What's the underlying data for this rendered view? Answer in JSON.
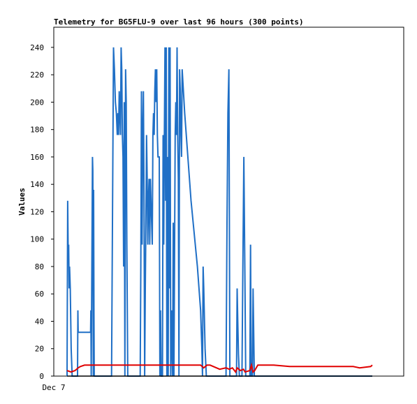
{
  "chart_data": {
    "type": "line",
    "title": "Telemetry for BG5FLU-9 over last 96 hours (300 points)",
    "xlabel": "",
    "ylabel": "Values",
    "ylim": [
      0,
      255
    ],
    "yticks": [
      0,
      20,
      40,
      60,
      80,
      100,
      120,
      140,
      160,
      180,
      200,
      220,
      240
    ],
    "x_tick_labels": [
      "Dec 7"
    ],
    "grid": false,
    "colors": {
      "blue": "#1f6fc6",
      "red": "#e00000",
      "black": "#000000"
    },
    "series": [
      {
        "color": "blue",
        "points": [
          [
            0.0,
            0
          ],
          [
            0.2,
            128
          ],
          [
            0.35,
            90
          ],
          [
            0.5,
            96
          ],
          [
            0.65,
            64
          ],
          [
            0.8,
            80
          ],
          [
            1.0,
            64
          ],
          [
            1.3,
            20
          ],
          [
            1.6,
            0
          ],
          [
            3.3,
            0
          ],
          [
            3.4,
            48
          ],
          [
            3.5,
            32
          ],
          [
            7.4,
            32
          ],
          [
            7.5,
            48
          ],
          [
            7.6,
            0
          ],
          [
            8.0,
            160
          ],
          [
            8.1,
            150
          ],
          [
            8.25,
            0
          ],
          [
            8.35,
            136
          ],
          [
            8.45,
            48
          ],
          [
            8.55,
            0
          ],
          [
            14.0,
            0
          ],
          [
            14.3,
            120
          ],
          [
            14.6,
            240
          ],
          [
            14.9,
            224
          ],
          [
            15.2,
            200
          ],
          [
            15.5,
            192
          ],
          [
            15.8,
            176
          ],
          [
            16.0,
            192
          ],
          [
            16.2,
            176
          ],
          [
            16.4,
            208
          ],
          [
            16.6,
            192
          ],
          [
            16.8,
            176
          ],
          [
            17.0,
            240
          ],
          [
            17.2,
            224
          ],
          [
            17.4,
            176
          ],
          [
            17.6,
            160
          ],
          [
            17.8,
            80
          ],
          [
            18.0,
            200
          ],
          [
            18.2,
            0
          ],
          [
            18.4,
            224
          ],
          [
            18.6,
            200
          ],
          [
            18.8,
            96
          ],
          [
            19.1,
            0
          ],
          [
            23.0,
            0
          ],
          [
            23.2,
            80
          ],
          [
            23.4,
            208
          ],
          [
            23.6,
            96
          ],
          [
            23.8,
            176
          ],
          [
            24.0,
            208
          ],
          [
            24.2,
            128
          ],
          [
            24.4,
            0
          ],
          [
            24.6,
            64
          ],
          [
            24.8,
            112
          ],
          [
            25.0,
            176
          ],
          [
            25.2,
            144
          ],
          [
            25.4,
            96
          ],
          [
            25.6,
            128
          ],
          [
            25.8,
            144
          ],
          [
            26.0,
            96
          ],
          [
            26.2,
            144
          ],
          [
            26.4,
            128
          ],
          [
            26.6,
            112
          ],
          [
            26.8,
            96
          ],
          [
            27.0,
            176
          ],
          [
            27.2,
            192
          ],
          [
            27.4,
            176
          ],
          [
            27.6,
            208
          ],
          [
            27.8,
            224
          ],
          [
            28.0,
            200
          ],
          [
            28.2,
            224
          ],
          [
            28.4,
            176
          ],
          [
            28.6,
            160
          ],
          [
            28.8,
            160
          ],
          [
            29.0,
            160
          ],
          [
            29.2,
            0
          ],
          [
            29.4,
            48
          ],
          [
            29.6,
            0
          ],
          [
            30.0,
            0
          ],
          [
            30.2,
            176
          ],
          [
            30.4,
            96
          ],
          [
            30.6,
            176
          ],
          [
            30.8,
            240
          ],
          [
            31.0,
            128
          ],
          [
            31.2,
            240
          ],
          [
            31.4,
            0
          ],
          [
            31.6,
            160
          ],
          [
            31.8,
            0
          ],
          [
            32.0,
            240
          ],
          [
            32.2,
            64
          ],
          [
            32.4,
            240
          ],
          [
            32.6,
            0
          ],
          [
            33.0,
            48
          ],
          [
            33.2,
            0
          ],
          [
            33.4,
            112
          ],
          [
            33.6,
            0
          ],
          [
            34.0,
            176
          ],
          [
            34.2,
            200
          ],
          [
            34.4,
            176
          ],
          [
            34.6,
            240
          ],
          [
            34.8,
            176
          ],
          [
            35.0,
            144
          ],
          [
            35.2,
            0
          ],
          [
            35.4,
            224
          ],
          [
            35.6,
            208
          ],
          [
            35.8,
            176
          ],
          [
            36.0,
            160
          ],
          [
            36.2,
            224
          ],
          [
            36.6,
            208
          ],
          [
            37.0,
            192
          ],
          [
            39.0,
            128
          ],
          [
            41.0,
            80
          ],
          [
            42.0,
            48
          ],
          [
            42.4,
            20
          ],
          [
            42.6,
            0
          ],
          [
            42.8,
            80
          ],
          [
            43.0,
            64
          ],
          [
            43.4,
            20
          ],
          [
            43.8,
            0
          ],
          [
            50.0,
            0
          ],
          [
            50.3,
            112
          ],
          [
            50.6,
            192
          ],
          [
            50.9,
            224
          ],
          [
            51.2,
            0
          ],
          [
            53.3,
            0
          ],
          [
            53.5,
            64
          ],
          [
            53.7,
            40
          ],
          [
            53.9,
            16
          ],
          [
            54.2,
            0
          ],
          [
            55.0,
            0
          ],
          [
            55.3,
            80
          ],
          [
            55.6,
            160
          ],
          [
            55.9,
            80
          ],
          [
            56.2,
            0
          ],
          [
            57.5,
            0
          ],
          [
            57.7,
            96
          ],
          [
            57.9,
            0
          ],
          [
            58.3,
            0
          ],
          [
            58.5,
            64
          ],
          [
            58.7,
            32
          ],
          [
            58.9,
            0
          ],
          [
            59.3,
            0
          ],
          [
            96.0,
            0
          ]
        ]
      },
      {
        "color": "red",
        "points": [
          [
            0.0,
            4
          ],
          [
            1.2,
            3
          ],
          [
            2.5,
            4
          ],
          [
            3.5,
            6
          ],
          [
            4.2,
            7
          ],
          [
            5.5,
            8
          ],
          [
            8.0,
            8
          ],
          [
            20.0,
            8
          ],
          [
            35.0,
            8
          ],
          [
            40.0,
            8
          ],
          [
            42.0,
            8
          ],
          [
            43.0,
            6
          ],
          [
            44.0,
            8
          ],
          [
            45.0,
            8
          ],
          [
            47.0,
            6
          ],
          [
            48.0,
            5
          ],
          [
            50.0,
            6
          ],
          [
            51.0,
            5
          ],
          [
            52.0,
            6
          ],
          [
            53.0,
            3
          ],
          [
            53.5,
            6
          ],
          [
            54.5,
            4
          ],
          [
            55.5,
            5
          ],
          [
            56.0,
            3
          ],
          [
            57.5,
            4
          ],
          [
            58.0,
            8
          ],
          [
            58.5,
            3
          ],
          [
            59.0,
            4
          ],
          [
            60.0,
            8
          ],
          [
            65.0,
            8
          ],
          [
            70.0,
            7
          ],
          [
            90.0,
            7
          ],
          [
            92.0,
            6
          ],
          [
            95.5,
            7
          ],
          [
            96.0,
            8
          ]
        ]
      },
      {
        "color": "black",
        "points": [
          [
            0,
            0
          ],
          [
            96,
            0
          ]
        ]
      }
    ]
  }
}
